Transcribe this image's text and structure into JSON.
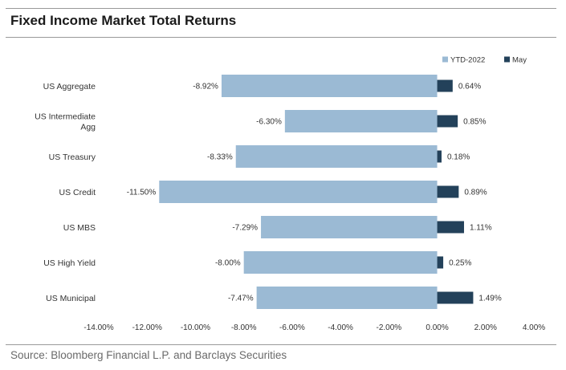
{
  "header": {
    "title": "Fixed Income Market Total Returns"
  },
  "footer": {
    "source": "Source: Bloomberg Financial L.P. and Barclays Securities"
  },
  "colors": {
    "ytd": "#9bbad4",
    "may": "#23415a",
    "rule": "#9a9a9a"
  },
  "chart_data": {
    "type": "bar",
    "orientation": "horizontal",
    "title": "Fixed Income Market Total Returns",
    "categories": [
      [
        "US Aggregate"
      ],
      [
        "US Intermediate",
        "Agg"
      ],
      [
        "US Treasury"
      ],
      [
        "US Credit"
      ],
      [
        "US MBS"
      ],
      [
        "US High Yield"
      ],
      [
        "US Municipal"
      ]
    ],
    "series": [
      {
        "name": "YTD-2022",
        "values": [
          -8.92,
          -6.3,
          -8.33,
          -11.5,
          -7.29,
          -8.0,
          -7.47
        ],
        "labels": [
          "-8.92%",
          "-6.30%",
          "-8.33%",
          "-11.50%",
          "-7.29%",
          "-8.00%",
          "-7.47%"
        ]
      },
      {
        "name": "May",
        "values": [
          0.64,
          0.85,
          0.18,
          0.89,
          1.11,
          0.25,
          1.49
        ],
        "labels": [
          "0.64%",
          "0.85%",
          "0.18%",
          "0.89%",
          "1.11%",
          "0.25%",
          "1.49%"
        ]
      }
    ],
    "xlim": [
      -14,
      4
    ],
    "xticks": [
      -14,
      -12,
      -10,
      -8,
      -6,
      -4,
      -2,
      0,
      2,
      4
    ],
    "xtick_labels": [
      "-14.00%",
      "-12.00%",
      "-10.00%",
      "-8.00%",
      "-6.00%",
      "-4.00%",
      "-2.00%",
      "0.00%",
      "2.00%",
      "4.00%"
    ],
    "grid": false,
    "legend": "top-right"
  }
}
